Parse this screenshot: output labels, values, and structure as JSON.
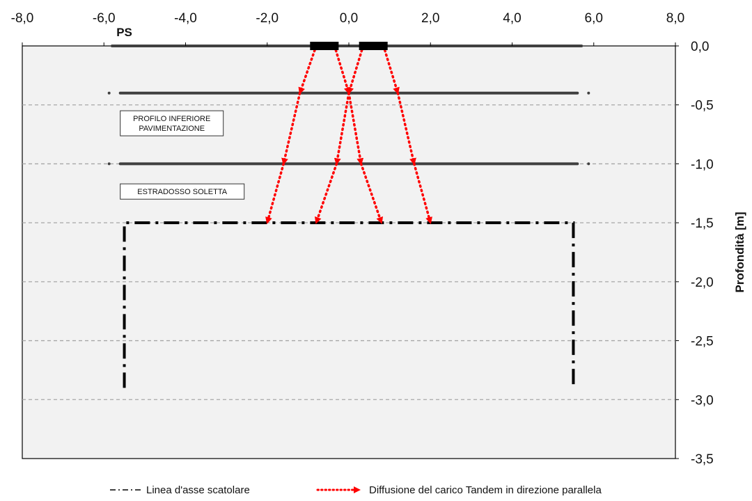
{
  "chart_data": {
    "type": "line",
    "title": "",
    "xlabel": "",
    "ylabel": "Profondità [m]",
    "xlim": [
      -8,
      8
    ],
    "ylim": [
      -3.5,
      0
    ],
    "x_ticks": [
      "-8,0",
      "-6,0",
      "-4,0",
      "-2,0",
      "0,0",
      "2,0",
      "4,0",
      "6,0",
      "8,0"
    ],
    "y_ticks": [
      "0,0",
      "-0,5",
      "-1,0",
      "-1,5",
      "-2,0",
      "-2,5",
      "-3,0",
      "-3,5"
    ],
    "grid": "horizontal dashed",
    "colors": {
      "background": "#f2f2f2",
      "lines": "#404040",
      "box": "#000000",
      "arrows": "#ff0000",
      "grid": "#a6a6a6"
    },
    "surface_label": "PS",
    "layers": [
      {
        "name": "surface",
        "x": [
          -5.8,
          5.7
        ],
        "y": 0.0
      },
      {
        "name": "pavement-bottom",
        "x": [
          -5.6,
          5.6
        ],
        "y": -0.4
      },
      {
        "name": "slab-top",
        "x": [
          -5.6,
          5.6
        ],
        "y": -1.0
      }
    ],
    "loads": [
      {
        "x": [
          -0.95,
          -0.25
        ],
        "y": 0.0
      },
      {
        "x": [
          0.25,
          0.95
        ],
        "y": 0.0
      }
    ],
    "series": [
      {
        "name": "Linea d'asse scatolare",
        "style": "dash-dot",
        "x": [
          -5.5,
          -5.5,
          5.5,
          5.5
        ],
        "y": [
          -2.9,
          -1.5,
          -1.5,
          -2.9
        ]
      },
      {
        "name": "Diffusione del carico Tandem in direzione parallela",
        "style": "dotted-arrow",
        "segments": [
          {
            "x": [
              -0.8,
              -1.2
            ],
            "y": [
              0.0,
              -0.4
            ]
          },
          {
            "x": [
              -1.2,
              -1.6
            ],
            "y": [
              -0.4,
              -1.0
            ]
          },
          {
            "x": [
              -1.6,
              -2.0
            ],
            "y": [
              -1.0,
              -1.5
            ]
          },
          {
            "x": [
              -0.35,
              0.0
            ],
            "y": [
              0.0,
              -0.4
            ]
          },
          {
            "x": [
              0.0,
              0.3
            ],
            "y": [
              -0.4,
              -1.0
            ]
          },
          {
            "x": [
              0.3,
              0.8
            ],
            "y": [
              -1.0,
              -1.5
            ]
          },
          {
            "x": [
              0.35,
              0.0
            ],
            "y": [
              0.0,
              -0.4
            ]
          },
          {
            "x": [
              0.0,
              -0.3
            ],
            "y": [
              -0.4,
              -1.0
            ]
          },
          {
            "x": [
              -0.3,
              -0.8
            ],
            "y": [
              -1.0,
              -1.5
            ]
          },
          {
            "x": [
              0.85,
              1.2
            ],
            "y": [
              0.0,
              -0.4
            ]
          },
          {
            "x": [
              1.2,
              1.6
            ],
            "y": [
              -0.4,
              -1.0
            ]
          },
          {
            "x": [
              1.6,
              2.0
            ],
            "y": [
              -1.0,
              -1.5
            ]
          }
        ]
      }
    ],
    "annotations": [
      {
        "lines": [
          "PROFILO INFERIORE",
          "PAVIMENTAZIONE"
        ],
        "x": -5.6,
        "y": -0.55
      },
      {
        "lines": [
          "ESTRADOSSO SOLETTA"
        ],
        "x": -5.6,
        "y": -1.17
      }
    ],
    "legend": {
      "placement": "bottom",
      "entries": [
        {
          "label": "Linea d'asse scatolare",
          "style": "dash-dot"
        },
        {
          "label": "Diffusione del carico Tandem in direzione parallela",
          "style": "dotted-arrow"
        }
      ]
    }
  }
}
